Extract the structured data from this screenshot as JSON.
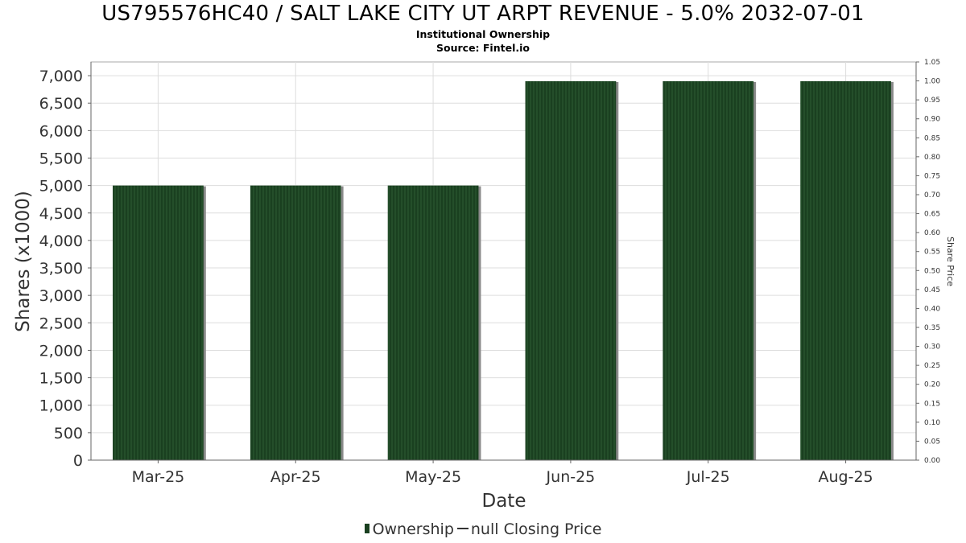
{
  "chart_data": {
    "type": "bar",
    "title": "US795576HC40 / SALT LAKE CITY UT ARPT REVENUE - 5.0% 2032-07-01",
    "subtitle": "Institutional Ownership",
    "source": "Source: Fintel.io",
    "xlabel": "Date",
    "ylabel": "Shares (x1000)",
    "ylabel_right": "Share Price",
    "categories": [
      "Mar-25",
      "Apr-25",
      "May-25",
      "Jun-25",
      "Jul-25",
      "Aug-25"
    ],
    "series": [
      {
        "name": "Ownership",
        "values": [
          5000,
          5000,
          5000,
          6900,
          6900,
          6900
        ]
      }
    ],
    "ylim": [
      0,
      7250
    ],
    "yticks": [
      0,
      500,
      1000,
      1500,
      2000,
      2500,
      3000,
      3500,
      4000,
      4500,
      5000,
      5500,
      6000,
      6500,
      7000
    ],
    "yticks_labels": [
      "0",
      "500",
      "1,000",
      "1,500",
      "2,000",
      "2,500",
      "3,000",
      "3,500",
      "4,000",
      "4,500",
      "5,000",
      "5,500",
      "6,000",
      "6,500",
      "7,000"
    ],
    "ylim_right": [
      0,
      1.05
    ],
    "yticks_right": [
      "0.00",
      "0.05",
      "0.10",
      "0.15",
      "0.20",
      "0.25",
      "0.30",
      "0.35",
      "0.40",
      "0.45",
      "0.50",
      "0.55",
      "0.60",
      "0.65",
      "0.70",
      "0.75",
      "0.80",
      "0.85",
      "0.90",
      "0.95",
      "1.00",
      "1.05"
    ],
    "grid": true,
    "legend": {
      "placement": "bottom-center",
      "items": [
        {
          "label": "Ownership",
          "kind": "bar"
        },
        {
          "label": "null Closing Price",
          "kind": "line"
        }
      ]
    },
    "colors": {
      "bar": "#1a4020",
      "bar_stripe": "#2b5a30",
      "bar_shadow": "#8a8a8a",
      "grid": "#dddddd"
    }
  }
}
